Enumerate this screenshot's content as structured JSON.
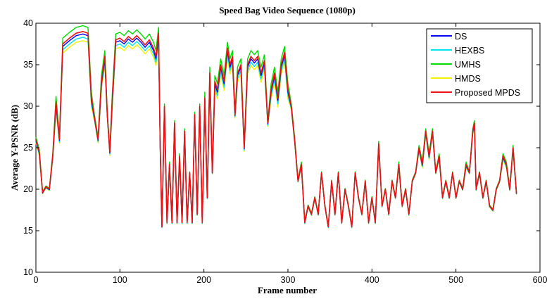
{
  "chart_data": {
    "type": "line",
    "title": "Speed Bag Video Sequence (1080p)",
    "xlabel": "Frame number",
    "ylabel": "Average Y-PSNR (dB)",
    "xlim": [
      0,
      600
    ],
    "ylim": [
      10,
      40
    ],
    "xticks": [
      "0",
      "100",
      "200",
      "300",
      "400",
      "500",
      "600"
    ],
    "yticks": [
      "10",
      "15",
      "20",
      "25",
      "30",
      "35",
      "40"
    ],
    "grid": false,
    "legend_position": "top-right",
    "series": [
      {
        "name": "DS",
        "color": "#0000ff",
        "offset": -0.3
      },
      {
        "name": "HEXBS",
        "color": "#00e5ee",
        "offset": -0.7
      },
      {
        "name": "UMHS",
        "color": "#00dd00",
        "offset": 0.7
      },
      {
        "name": "HMDS",
        "color": "#f2f200",
        "offset": -1.1
      },
      {
        "name": "Proposed MPDS",
        "color": "#ee1111",
        "offset": 0.0
      }
    ],
    "base_curve": [
      [
        0,
        26
      ],
      [
        4,
        24.5
      ],
      [
        8,
        19.6
      ],
      [
        12,
        20.3
      ],
      [
        16,
        20
      ],
      [
        20,
        24
      ],
      [
        24,
        30.5
      ],
      [
        28,
        26
      ],
      [
        32,
        37.5
      ],
      [
        40,
        38.2
      ],
      [
        48,
        38.8
      ],
      [
        56,
        39
      ],
      [
        62,
        38.8
      ],
      [
        66,
        31
      ],
      [
        70,
        28.5
      ],
      [
        74,
        26
      ],
      [
        78,
        33
      ],
      [
        82,
        36
      ],
      [
        85,
        29
      ],
      [
        88,
        24.5
      ],
      [
        91,
        31
      ],
      [
        95,
        38
      ],
      [
        100,
        38.2
      ],
      [
        105,
        37.8
      ],
      [
        110,
        38.4
      ],
      [
        115,
        38
      ],
      [
        120,
        38.5
      ],
      [
        125,
        38
      ],
      [
        130,
        37.4
      ],
      [
        135,
        38
      ],
      [
        140,
        37
      ],
      [
        143,
        36
      ],
      [
        146,
        38.8
      ],
      [
        148,
        25
      ],
      [
        150,
        15.5
      ],
      [
        153,
        30
      ],
      [
        156,
        16
      ],
      [
        159,
        23
      ],
      [
        162,
        16
      ],
      [
        165,
        28
      ],
      [
        168,
        16
      ],
      [
        171,
        24
      ],
      [
        174,
        16
      ],
      [
        177,
        27
      ],
      [
        180,
        16
      ],
      [
        183,
        22
      ],
      [
        186,
        16
      ],
      [
        189,
        29
      ],
      [
        192,
        17
      ],
      [
        195,
        30
      ],
      [
        198,
        16
      ],
      [
        201,
        31
      ],
      [
        204,
        19
      ],
      [
        207,
        34
      ],
      [
        210,
        22
      ],
      [
        213,
        33
      ],
      [
        216,
        32
      ],
      [
        220,
        35
      ],
      [
        224,
        33
      ],
      [
        228,
        37
      ],
      [
        231,
        35
      ],
      [
        234,
        36
      ],
      [
        237,
        29
      ],
      [
        240,
        34
      ],
      [
        244,
        35
      ],
      [
        248,
        25
      ],
      [
        252,
        35
      ],
      [
        256,
        36
      ],
      [
        260,
        35.5
      ],
      [
        264,
        36
      ],
      [
        268,
        34
      ],
      [
        272,
        35.5
      ],
      [
        276,
        28
      ],
      [
        280,
        32
      ],
      [
        284,
        34
      ],
      [
        288,
        31
      ],
      [
        292,
        35
      ],
      [
        296,
        36.5
      ],
      [
        300,
        32
      ],
      [
        304,
        30
      ],
      [
        308,
        26
      ],
      [
        312,
        21
      ],
      [
        316,
        23
      ],
      [
        320,
        16
      ],
      [
        324,
        18
      ],
      [
        328,
        17
      ],
      [
        332,
        19
      ],
      [
        336,
        17
      ],
      [
        340,
        22
      ],
      [
        344,
        18
      ],
      [
        348,
        15.5
      ],
      [
        352,
        21
      ],
      [
        356,
        17
      ],
      [
        360,
        22
      ],
      [
        364,
        16
      ],
      [
        368,
        20
      ],
      [
        372,
        18
      ],
      [
        376,
        15.5
      ],
      [
        380,
        22
      ],
      [
        384,
        19
      ],
      [
        388,
        17
      ],
      [
        392,
        21
      ],
      [
        396,
        16
      ],
      [
        400,
        19
      ],
      [
        404,
        16
      ],
      [
        408,
        25.5
      ],
      [
        412,
        18
      ],
      [
        416,
        20
      ],
      [
        420,
        17
      ],
      [
        424,
        21
      ],
      [
        428,
        19
      ],
      [
        432,
        23
      ],
      [
        436,
        18
      ],
      [
        440,
        20
      ],
      [
        444,
        17
      ],
      [
        448,
        21
      ],
      [
        452,
        22
      ],
      [
        456,
        25
      ],
      [
        460,
        23
      ],
      [
        464,
        27
      ],
      [
        468,
        24
      ],
      [
        472,
        27
      ],
      [
        476,
        22
      ],
      [
        480,
        24
      ],
      [
        484,
        19
      ],
      [
        488,
        21
      ],
      [
        492,
        19
      ],
      [
        496,
        22
      ],
      [
        500,
        19
      ],
      [
        504,
        21
      ],
      [
        508,
        20
      ],
      [
        512,
        23
      ],
      [
        516,
        22
      ],
      [
        520,
        27
      ],
      [
        522,
        28
      ],
      [
        524,
        20
      ],
      [
        528,
        22
      ],
      [
        532,
        19
      ],
      [
        536,
        21
      ],
      [
        540,
        18
      ],
      [
        544,
        17.5
      ],
      [
        548,
        20
      ],
      [
        552,
        21
      ],
      [
        556,
        24
      ],
      [
        560,
        23
      ],
      [
        564,
        20
      ],
      [
        568,
        25
      ],
      [
        572,
        19.5
      ]
    ]
  }
}
